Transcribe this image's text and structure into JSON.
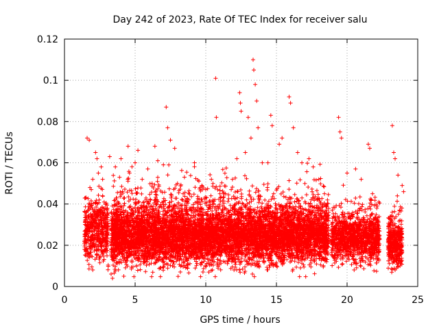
{
  "chart_data": {
    "type": "scatter",
    "title": "Day 242 of 2023, Rate Of TEC Index for receiver salu",
    "xlabel": "GPS time / hours",
    "ylabel": "ROTI / TECUs",
    "xlim": [
      0,
      25
    ],
    "ylim": [
      0,
      0.12
    ],
    "x_ticks": [
      "0",
      "5",
      "10",
      "15",
      "20",
      "25"
    ],
    "y_ticks": [
      "0",
      "0.02",
      "0.04",
      "0.06",
      "0.08",
      "0.1",
      "0.12"
    ],
    "grid": true,
    "marker": "+",
    "color": "#ff0000",
    "series": [
      {
        "points": [
          [
            1.6,
            0.072
          ],
          [
            1.75,
            0.071
          ],
          [
            1.8,
            0.048
          ],
          [
            1.9,
            0.047
          ],
          [
            2.0,
            0.052
          ],
          [
            2.2,
            0.065
          ],
          [
            2.3,
            0.062
          ],
          [
            2.4,
            0.055
          ],
          [
            2.6,
            0.058
          ],
          [
            2.7,
            0.052
          ],
          [
            3.2,
            0.063
          ],
          [
            3.3,
            0.006
          ],
          [
            3.4,
            0.004
          ],
          [
            3.6,
            0.058
          ],
          [
            3.9,
            0.053
          ],
          [
            4.0,
            0.062
          ],
          [
            4.5,
            0.068
          ],
          [
            4.6,
            0.055
          ],
          [
            5.0,
            0.06
          ],
          [
            5.2,
            0.066
          ],
          [
            5.5,
            0.052
          ],
          [
            5.9,
            0.057
          ],
          [
            6.2,
            0.05
          ],
          [
            6.4,
            0.068
          ],
          [
            6.6,
            0.061
          ],
          [
            7.0,
            0.059
          ],
          [
            7.2,
            0.087
          ],
          [
            7.3,
            0.077
          ],
          [
            7.5,
            0.071
          ],
          [
            7.8,
            0.067
          ],
          [
            8.0,
            0.05
          ],
          [
            8.4,
            0.045
          ],
          [
            8.8,
            0.042
          ],
          [
            9.2,
            0.06
          ],
          [
            9.6,
            0.048
          ],
          [
            10.0,
            0.047
          ],
          [
            10.4,
            0.052
          ],
          [
            10.7,
            0.101
          ],
          [
            10.75,
            0.082
          ],
          [
            11.0,
            0.045
          ],
          [
            11.4,
            0.045
          ],
          [
            11.8,
            0.047
          ],
          [
            12.2,
            0.062
          ],
          [
            12.4,
            0.094
          ],
          [
            12.45,
            0.089
          ],
          [
            12.5,
            0.085
          ],
          [
            12.8,
            0.065
          ],
          [
            13.0,
            0.082
          ],
          [
            13.2,
            0.072
          ],
          [
            13.3,
            0.006
          ],
          [
            13.35,
            0.11
          ],
          [
            13.4,
            0.105
          ],
          [
            13.5,
            0.098
          ],
          [
            13.6,
            0.09
          ],
          [
            13.7,
            0.077
          ],
          [
            14.0,
            0.06
          ],
          [
            14.4,
            0.06
          ],
          [
            14.6,
            0.083
          ],
          [
            14.7,
            0.078
          ],
          [
            14.8,
            0.045
          ],
          [
            15.2,
            0.069
          ],
          [
            15.4,
            0.072
          ],
          [
            15.9,
            0.092
          ],
          [
            16.0,
            0.089
          ],
          [
            16.2,
            0.077
          ],
          [
            16.5,
            0.065
          ],
          [
            16.8,
            0.06
          ],
          [
            17.3,
            0.062
          ],
          [
            17.6,
            0.058
          ],
          [
            18.0,
            0.052
          ],
          [
            18.4,
            0.045
          ],
          [
            18.7,
            0.036
          ],
          [
            19.4,
            0.082
          ],
          [
            19.5,
            0.075
          ],
          [
            19.6,
            0.072
          ],
          [
            20.0,
            0.055
          ],
          [
            20.6,
            0.057
          ],
          [
            21.0,
            0.052
          ],
          [
            21.5,
            0.069
          ],
          [
            21.6,
            0.067
          ],
          [
            21.8,
            0.045
          ],
          [
            22.1,
            0.038
          ],
          [
            23.2,
            0.078
          ],
          [
            23.3,
            0.065
          ],
          [
            23.4,
            0.062
          ],
          [
            23.6,
            0.054
          ],
          [
            23.9,
            0.049
          ],
          [
            24.0,
            0.046
          ],
          [
            23.4,
            0.008
          ],
          [
            20.5,
            0.008
          ],
          [
            16.7,
            0.009
          ],
          [
            12.0,
            0.008
          ],
          [
            9.8,
            0.007
          ],
          [
            8.2,
            0.007
          ],
          [
            4.2,
            0.005
          ],
          [
            2.0,
            0.008
          ]
        ]
      }
    ],
    "clusters": [
      {
        "x0": 1.4,
        "x1": 3.1,
        "ylo": 0.012,
        "yhi": 0.043,
        "count": 520
      },
      {
        "x0": 3.3,
        "x1": 18.7,
        "ylo": 0.011,
        "yhi": 0.038,
        "count": 5200
      },
      {
        "x0": 3.3,
        "x1": 18.7,
        "ylo": 0.008,
        "yhi": 0.052,
        "count": 1900
      },
      {
        "x0": 18.9,
        "x1": 22.3,
        "ylo": 0.012,
        "yhi": 0.035,
        "count": 900
      },
      {
        "x0": 18.9,
        "x1": 22.3,
        "ylo": 0.01,
        "yhi": 0.045,
        "count": 280
      },
      {
        "x0": 22.9,
        "x1": 23.9,
        "ylo": 0.01,
        "yhi": 0.032,
        "count": 330
      },
      {
        "x0": 22.9,
        "x1": 23.9,
        "ylo": 0.009,
        "yhi": 0.042,
        "count": 90
      }
    ]
  }
}
